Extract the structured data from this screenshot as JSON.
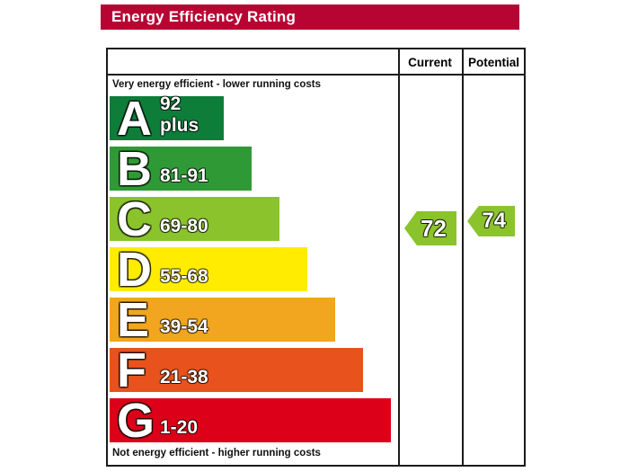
{
  "title": "Energy Efficiency Rating",
  "columns": {
    "current": "Current",
    "potential": "Potential"
  },
  "notes": {
    "top": "Very energy efficient - lower running costs",
    "bottom": "Not energy efficient - higher running costs"
  },
  "colors": {
    "title_bar": "#b70433",
    "border": "#1a1a1a",
    "arrow": "#8bc32c"
  },
  "chart_data": {
    "type": "bar",
    "title": "Energy Efficiency Rating",
    "orientation": "horizontal",
    "categories": [
      "A",
      "B",
      "C",
      "D",
      "E",
      "F",
      "G"
    ],
    "bands": [
      {
        "letter": "A",
        "label": "92 plus",
        "min": 92,
        "max": 100,
        "color": "#0e7d3a"
      },
      {
        "letter": "B",
        "label": "81-91",
        "min": 81,
        "max": 91,
        "color": "#2f9a35"
      },
      {
        "letter": "C",
        "label": "69-80",
        "min": 69,
        "max": 80,
        "color": "#8bc32c"
      },
      {
        "letter": "D",
        "label": "55-68",
        "min": 55,
        "max": 68,
        "color": "#ffec00"
      },
      {
        "letter": "E",
        "label": "39-54",
        "min": 39,
        "max": 54,
        "color": "#f2a51e"
      },
      {
        "letter": "F",
        "label": "21-38",
        "min": 21,
        "max": 38,
        "color": "#e8521d"
      },
      {
        "letter": "G",
        "label": "1-20",
        "min": 1,
        "max": 20,
        "color": "#dd0019"
      }
    ],
    "series": [
      {
        "name": "Current",
        "values": [
          72
        ],
        "band": "C"
      },
      {
        "name": "Potential",
        "values": [
          74
        ],
        "band": "C"
      }
    ],
    "current": 72,
    "potential": 74,
    "arrow_color": "#8bc32c",
    "value_range": [
      1,
      100
    ],
    "legend_position": "none",
    "grid": false
  }
}
